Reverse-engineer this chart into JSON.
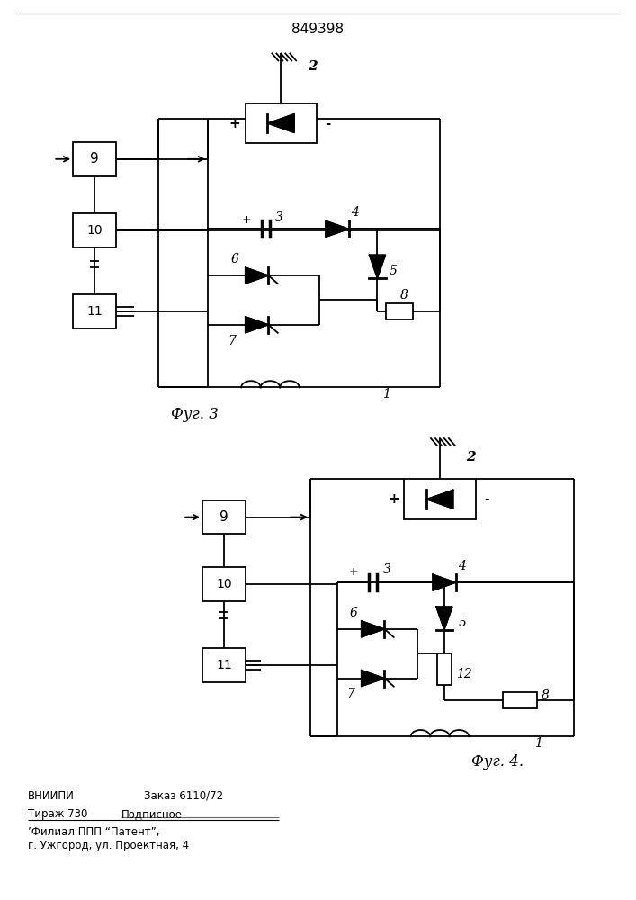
{
  "title": "849398",
  "bg_color": "#ffffff",
  "line_color": "#000000",
  "fig3_label": "Фуг. 3",
  "fig4_label": "Фуг. 4.",
  "bt1": "ВНИИПИ",
  "bt2": "Заказ 6110/72",
  "bt3": "Тираж 730",
  "bt4": "Подписное",
  "bt5": "’Филиал ППП “Патент”,",
  "bt6": "г. Ужгород, ул. Проектная, 4"
}
